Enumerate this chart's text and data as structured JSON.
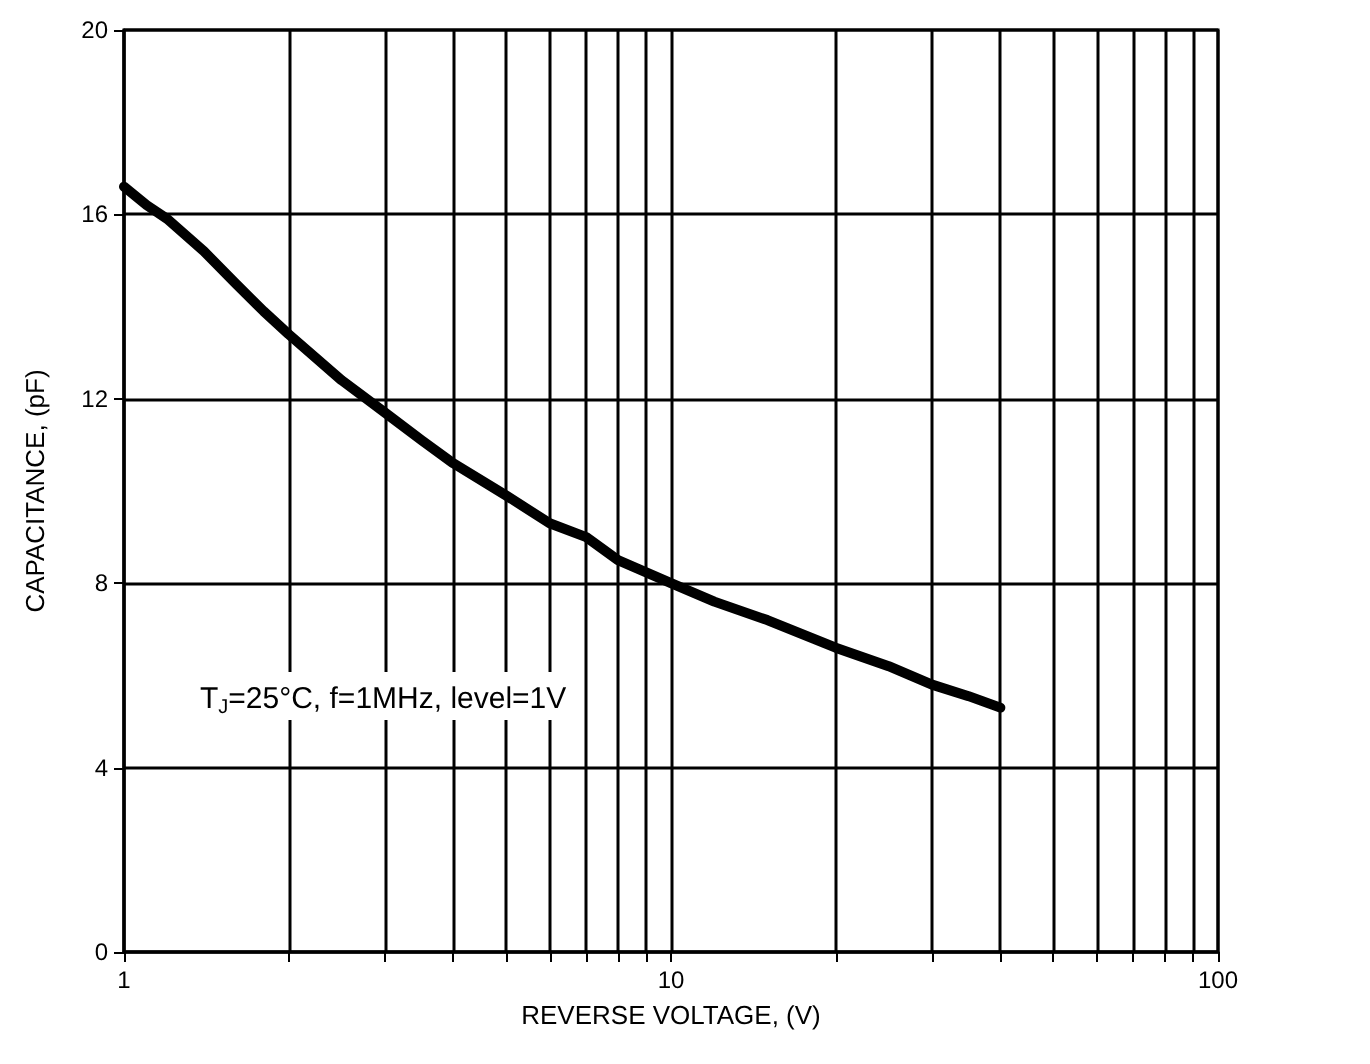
{
  "chart_data": {
    "type": "line",
    "xlabel": "REVERSE VOLTAGE, (V)",
    "ylabel": "CAPACITANCE, (pF)",
    "annotations": [
      "T$_{J}$=25°C, f=1MHz, level=1V"
    ],
    "log": "x",
    "grid": true,
    "marker": "none",
    "line_style": "solid",
    "xlim": [
      1,
      100
    ],
    "xticks": [
      1,
      {
        "value": 2,
        "label": null
      },
      {
        "value": 3,
        "label": null
      },
      {
        "value": 4,
        "label": null
      },
      {
        "value": 5,
        "label": null
      },
      {
        "value": 6,
        "label": null
      },
      {
        "value": 7,
        "label": null
      },
      {
        "value": 8,
        "label": null
      },
      {
        "value": 9,
        "label": null
      },
      10,
      {
        "value": 20,
        "label": null
      },
      {
        "value": 30,
        "label": null
      },
      {
        "value": 40,
        "label": null
      },
      {
        "value": 50,
        "label": null
      },
      {
        "value": 60,
        "label": null
      },
      {
        "value": 70,
        "label": null
      },
      {
        "value": 80,
        "label": null
      },
      {
        "value": 90,
        "label": null
      },
      100
    ],
    "ylim": [
      0,
      20
    ],
    "yticks": [
      0,
      4,
      8,
      12,
      16,
      20
    ],
    "series": [
      {
        "color": "#000000",
        "x": [
          1,
          1.1,
          1.2,
          1.4,
          1.6,
          1.8,
          2,
          2.5,
          3,
          3.5,
          4,
          5,
          6,
          7,
          8,
          10,
          12,
          15,
          20,
          25,
          30,
          35,
          40
        ],
        "values": [
          16.6,
          16.2,
          15.9,
          15.2,
          14.5,
          13.9,
          13.4,
          12.4,
          11.7,
          11.1,
          10.6,
          9.9,
          9.3,
          9.0,
          8.5,
          8.0,
          7.6,
          7.2,
          6.6,
          6.2,
          5.8,
          5.55,
          5.3
        ]
      }
    ]
  }
}
